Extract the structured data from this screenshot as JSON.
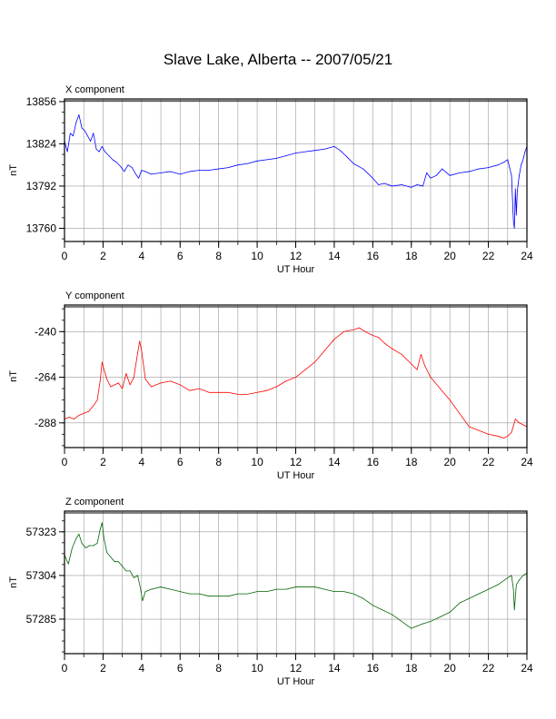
{
  "title": "Slave Lake, Alberta -- 2007/05/21",
  "chart_data": [
    {
      "type": "line",
      "panel_label": "X component",
      "xlabel": "UT Hour",
      "ylabel": "nT",
      "xlim": [
        0,
        24
      ],
      "ylim": [
        13750,
        13858
      ],
      "xticks": [
        0,
        2,
        4,
        6,
        8,
        10,
        12,
        14,
        16,
        18,
        20,
        22,
        24
      ],
      "yticks": [
        13760,
        13792,
        13824,
        13856
      ],
      "grid": true,
      "series": [
        {
          "color": "#0000ff",
          "x": [
            0,
            0.15,
            0.3,
            0.45,
            0.6,
            0.75,
            0.9,
            1.05,
            1.2,
            1.35,
            1.5,
            1.65,
            1.8,
            1.95,
            2.1,
            2.3,
            2.5,
            2.7,
            2.9,
            3.1,
            3.3,
            3.5,
            3.7,
            3.85,
            4.0,
            4.2,
            4.5,
            5.0,
            5.5,
            6.0,
            6.5,
            7.0,
            7.5,
            8.0,
            8.5,
            9.0,
            9.5,
            10.0,
            10.5,
            11.0,
            11.5,
            12.0,
            12.5,
            13.0,
            13.5,
            14.0,
            14.3,
            14.6,
            15.0,
            15.5,
            16.0,
            16.3,
            16.6,
            17.0,
            17.5,
            18.0,
            18.3,
            18.6,
            18.8,
            19.0,
            19.3,
            19.6,
            20.0,
            20.5,
            21.0,
            21.5,
            22.0,
            22.5,
            22.8,
            23.0,
            23.1,
            23.2,
            23.3,
            23.35,
            23.4,
            23.45,
            23.5,
            23.6,
            23.7,
            23.8,
            23.9,
            24.0
          ],
          "y": [
            13826,
            13818,
            13832,
            13830,
            13840,
            13846,
            13836,
            13834,
            13830,
            13826,
            13832,
            13820,
            13818,
            13822,
            13818,
            13815,
            13812,
            13810,
            13807,
            13803,
            13808,
            13806,
            13801,
            13798,
            13804,
            13803,
            13801,
            13802,
            13803,
            13801,
            13803,
            13804,
            13804,
            13805,
            13806,
            13808,
            13809,
            13811,
            13812,
            13813,
            13815,
            13817,
            13818,
            13819,
            13820,
            13822,
            13819,
            13815,
            13809,
            13805,
            13798,
            13793,
            13794,
            13792,
            13793,
            13791,
            13793,
            13792,
            13802,
            13798,
            13800,
            13805,
            13800,
            13802,
            13803,
            13805,
            13806,
            13808,
            13810,
            13812,
            13806,
            13800,
            13765,
            13760,
            13790,
            13770,
            13788,
            13800,
            13808,
            13812,
            13818,
            13822
          ]
        }
      ]
    },
    {
      "type": "line",
      "panel_label": "Y component",
      "xlabel": "UT Hour",
      "ylabel": "nT",
      "xlim": [
        0,
        24
      ],
      "ylim": [
        -301,
        -226
      ],
      "xticks": [
        0,
        2,
        4,
        6,
        8,
        10,
        12,
        14,
        16,
        18,
        20,
        22,
        24
      ],
      "yticks": [
        -240,
        -264,
        -288
      ],
      "grid": true,
      "series": [
        {
          "color": "#ff0000",
          "x": [
            0,
            0.25,
            0.5,
            0.75,
            1.0,
            1.25,
            1.5,
            1.7,
            1.85,
            1.95,
            2.05,
            2.2,
            2.4,
            2.6,
            2.8,
            3.0,
            3.2,
            3.4,
            3.6,
            3.8,
            3.9,
            4.0,
            4.2,
            4.5,
            5.0,
            5.5,
            6.0,
            6.5,
            7.0,
            7.5,
            8.0,
            8.5,
            9.0,
            9.5,
            10.0,
            10.5,
            11.0,
            11.5,
            12.0,
            12.5,
            13.0,
            13.5,
            14.0,
            14.5,
            15.0,
            15.3,
            15.6,
            16.0,
            16.3,
            16.6,
            17.0,
            17.5,
            18.0,
            18.3,
            18.5,
            18.7,
            19.0,
            19.5,
            20.0,
            20.5,
            21.0,
            21.5,
            22.0,
            22.5,
            22.8,
            23.0,
            23.2,
            23.4,
            23.6,
            24.0
          ],
          "y": [
            -286,
            -285,
            -286,
            -284,
            -283,
            -282,
            -279,
            -276,
            -266,
            -256,
            -260,
            -265,
            -269,
            -268,
            -267,
            -270,
            -262,
            -268,
            -264,
            -251,
            -245,
            -250,
            -265,
            -269,
            -267,
            -266,
            -268,
            -271,
            -270,
            -272,
            -272,
            -272,
            -273,
            -273,
            -272,
            -271,
            -269,
            -266,
            -264,
            -260,
            -256,
            -250,
            -244,
            -240,
            -239,
            -238,
            -240,
            -242,
            -243,
            -246,
            -249,
            -252,
            -257,
            -260,
            -252,
            -258,
            -264,
            -270,
            -276,
            -283,
            -290,
            -292,
            -294,
            -295,
            -296,
            -295,
            -293,
            -286,
            -288,
            -290
          ]
        }
      ]
    },
    {
      "type": "line",
      "panel_label": "Z component",
      "xlabel": "UT Hour",
      "ylabel": "nT",
      "xlim": [
        0,
        24
      ],
      "ylim": [
        57270,
        57332
      ],
      "xticks": [
        0,
        2,
        4,
        6,
        8,
        10,
        12,
        14,
        16,
        18,
        20,
        22,
        24
      ],
      "yticks": [
        57285,
        57304,
        57323
      ],
      "grid": true,
      "series": [
        {
          "color": "#006400",
          "x": [
            0,
            0.2,
            0.4,
            0.6,
            0.75,
            0.9,
            1.1,
            1.3,
            1.5,
            1.7,
            1.85,
            1.95,
            2.05,
            2.2,
            2.4,
            2.6,
            2.8,
            3.0,
            3.2,
            3.4,
            3.6,
            3.8,
            3.95,
            4.05,
            4.2,
            4.5,
            5.0,
            5.5,
            6.0,
            6.5,
            7.0,
            7.5,
            8.0,
            8.5,
            9.0,
            9.5,
            10.0,
            10.5,
            11.0,
            11.5,
            12.0,
            12.5,
            13.0,
            13.5,
            14.0,
            14.5,
            15.0,
            15.5,
            16.0,
            16.5,
            17.0,
            17.5,
            18.0,
            18.3,
            18.6,
            19.0,
            19.5,
            20.0,
            20.5,
            21.0,
            21.5,
            22.0,
            22.5,
            23.0,
            23.2,
            23.3,
            23.35,
            23.45,
            23.6,
            23.8,
            24.0
          ],
          "y": [
            57313,
            57309,
            57316,
            57320,
            57322,
            57318,
            57316,
            57317,
            57317,
            57318,
            57324,
            57327,
            57320,
            57314,
            57312,
            57310,
            57310,
            57308,
            57306,
            57306,
            57303,
            57304,
            57298,
            57293,
            57297,
            57298,
            57299,
            57298,
            57297,
            57296,
            57296,
            57295,
            57295,
            57295,
            57296,
            57296,
            57297,
            57297,
            57298,
            57298,
            57299,
            57299,
            57299,
            57298,
            57297,
            57297,
            57296,
            57294,
            57291,
            57289,
            57287,
            57284,
            57281,
            57282,
            57283,
            57284,
            57286,
            57288,
            57292,
            57294,
            57296,
            57298,
            57300,
            57303,
            57304,
            57298,
            57289,
            57300,
            57302,
            57304,
            57305
          ]
        }
      ]
    }
  ]
}
